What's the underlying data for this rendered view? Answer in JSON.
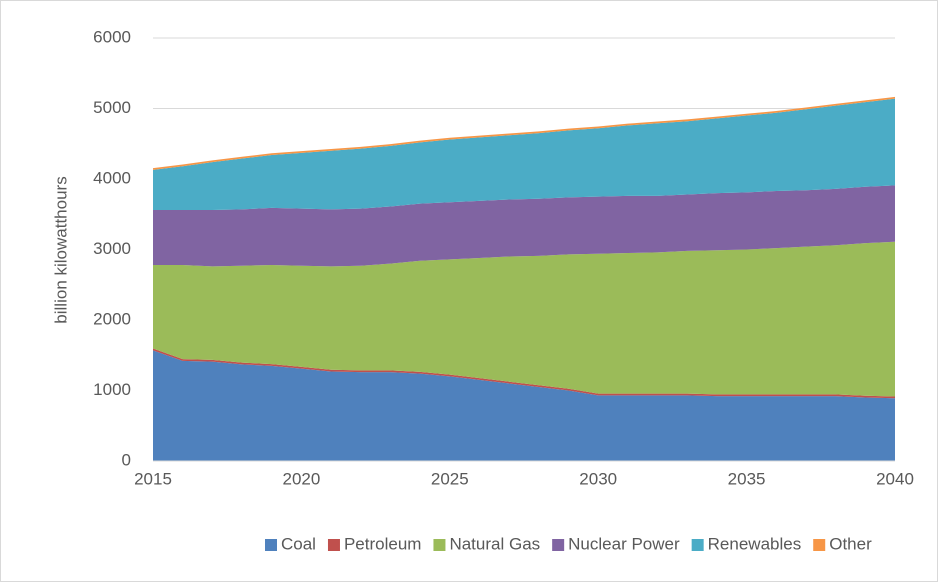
{
  "chart_data": {
    "type": "stacked_area",
    "ylabel": "billion kilowatthours",
    "x": [
      2015,
      2016,
      2017,
      2018,
      2019,
      2020,
      2021,
      2022,
      2023,
      2024,
      2025,
      2026,
      2027,
      2028,
      2029,
      2030,
      2031,
      2032,
      2033,
      2034,
      2035,
      2036,
      2037,
      2038,
      2039,
      2040
    ],
    "xlim": [
      2015,
      2040
    ],
    "xticks": [
      2015,
      2020,
      2025,
      2030,
      2035,
      2040
    ],
    "ylim": [
      0,
      6000
    ],
    "yticks": [
      0,
      1000,
      2000,
      3000,
      4000,
      5000,
      6000
    ],
    "grid": true,
    "legend": "bottom",
    "series": [
      {
        "name": "Coal",
        "color": "#4f81bd",
        "values": [
          1570,
          1420,
          1410,
          1370,
          1350,
          1310,
          1270,
          1260,
          1260,
          1240,
          1200,
          1150,
          1100,
          1050,
          1000,
          930,
          930,
          930,
          930,
          920,
          920,
          920,
          920,
          920,
          900,
          890
        ]
      },
      {
        "name": "Petroleum",
        "color": "#c0504d",
        "values": [
          25,
          25,
          25,
          25,
          25,
          25,
          25,
          25,
          25,
          25,
          25,
          25,
          25,
          25,
          25,
          25,
          25,
          25,
          25,
          25,
          25,
          25,
          25,
          25,
          25,
          25
        ]
      },
      {
        "name": "Natural Gas",
        "color": "#9bbb59",
        "values": [
          1185,
          1335,
          1325,
          1375,
          1405,
          1435,
          1465,
          1485,
          1515,
          1575,
          1635,
          1705,
          1775,
          1835,
          1905,
          1985,
          1995,
          2005,
          2025,
          2045,
          2055,
          2075,
          2095,
          2115,
          2165,
          2195
        ]
      },
      {
        "name": "Nuclear Power",
        "color": "#8064a2",
        "values": [
          780,
          780,
          800,
          800,
          810,
          810,
          810,
          810,
          810,
          810,
          810,
          810,
          810,
          810,
          810,
          810,
          810,
          800,
          800,
          810,
          810,
          810,
          800,
          800,
          800,
          800
        ]
      },
      {
        "name": "Renewables",
        "color": "#4bacc6",
        "values": [
          570,
          620,
          680,
          720,
          750,
          790,
          830,
          850,
          860,
          870,
          890,
          900,
          910,
          930,
          950,
          970,
          1000,
          1030,
          1040,
          1060,
          1090,
          1110,
          1150,
          1180,
          1200,
          1230
        ]
      },
      {
        "name": "Other",
        "color": "#f79646",
        "values": [
          25,
          25,
          25,
          25,
          25,
          25,
          25,
          25,
          25,
          25,
          25,
          25,
          25,
          25,
          25,
          25,
          25,
          25,
          25,
          25,
          25,
          25,
          25,
          25,
          25,
          25
        ]
      }
    ]
  }
}
